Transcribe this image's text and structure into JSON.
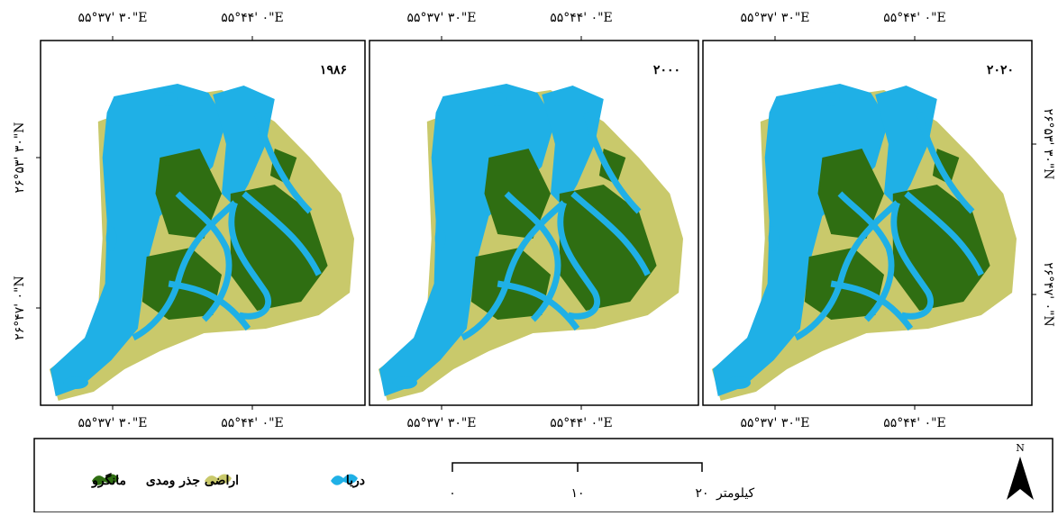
{
  "panels": [
    {
      "year": "۱۹۸۶",
      "top_labels": [
        "۵۵°۳۷' ۳۰\"E",
        "۵۵°۴۴' ۰\"E"
      ],
      "bottom_labels": [
        "۵۵°۳۷' ۳۰\"E",
        "۵۵°۴۴' ۰\"E"
      ]
    },
    {
      "year": "۲۰۰۰",
      "top_labels": [
        "۵۵°۳۷' ۳۰\"E",
        "۵۵°۴۴' ۰\"E"
      ],
      "bottom_labels": [
        "۵۵°۳۷' ۳۰\"E",
        "۵۵°۴۴' ۰\"E"
      ]
    },
    {
      "year": "۲۰۲۰",
      "top_labels": [
        "۵۵°۳۷' ۳۰\"E",
        "۵۵°۴۴' ۰\"E"
      ],
      "bottom_labels": [
        "۵۵°۳۷' ۳۰\"E",
        "۵۵°۴۴' ۰\"E"
      ]
    }
  ],
  "left_labels": [
    "۲۶°۵۳' ۳۰\"N",
    "۲۶°۴۷' ۰\"N"
  ],
  "right_labels": [
    "۲۶°۵۳' ۳۰\"N",
    "۲۶°۴۷' ۰\"N"
  ],
  "legend": [
    {
      "label": "دریا",
      "color": "#1fb0e6"
    },
    {
      "label": "اراضی جذر ومدی",
      "color": "#c9c96b"
    },
    {
      "label": "مانگرو",
      "color": "#2f6e12"
    }
  ],
  "scale": {
    "unit": "کیلومتر",
    "ticks": [
      "۰",
      "۱۰",
      "۲۰"
    ]
  },
  "north": "N"
}
